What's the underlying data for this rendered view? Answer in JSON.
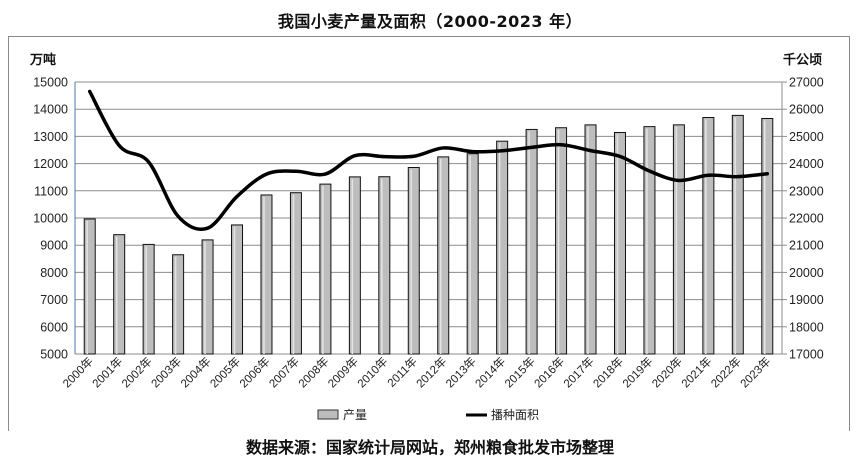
{
  "title": "我国小麦产量及面积（2000-2023 年）",
  "source": "数据来源：国家统计局网站，郑州粮食批发市场整理",
  "axes": {
    "left_unit": "万吨",
    "right_unit": "千公顷",
    "left_ticks": [
      "15000",
      "14000",
      "13000",
      "12000",
      "11000",
      "10000",
      "9000",
      "8000",
      "7000",
      "6000",
      "5000"
    ],
    "right_ticks": [
      "27000",
      "26000",
      "25000",
      "24000",
      "23000",
      "22000",
      "21000",
      "20000",
      "19000",
      "18000",
      "17000"
    ]
  },
  "legend": {
    "bar_label": "产量",
    "line_label": "播种面积"
  },
  "colors": {
    "bar_fill": "#bdbdbd",
    "bar_stroke": "#111111",
    "line": "#000000",
    "grid": "#8c8c8c",
    "axis": "#4a7aa8"
  },
  "chart_data": {
    "type": "bar+line",
    "title": "我国小麦产量及面积（2000-2023 年）",
    "categories": [
      "2000年",
      "2001年",
      "2002年",
      "2003年",
      "2004年",
      "2005年",
      "2006年",
      "2007年",
      "2008年",
      "2009年",
      "2010年",
      "2011年",
      "2012年",
      "2013年",
      "2014年",
      "2015年",
      "2016年",
      "2017年",
      "2018年",
      "2019年",
      "2020年",
      "2021年",
      "2022年",
      "2023年"
    ],
    "series": [
      {
        "name": "产量",
        "type": "bar",
        "axis": "left",
        "unit": "万吨",
        "values": [
          9964,
          9387,
          9029,
          8649,
          9195,
          9745,
          10847,
          10930,
          11246,
          11512,
          11518,
          11857,
          12247,
          12364,
          12824,
          13256,
          13319,
          13424,
          13144,
          13359,
          13425,
          13695,
          13772,
          13659
        ]
      },
      {
        "name": "播种面积",
        "type": "line",
        "axis": "right",
        "unit": "千公顷",
        "values": [
          26653,
          24664,
          24059,
          22064,
          21626,
          22793,
          23613,
          23721,
          23617,
          24290,
          24257,
          24270,
          24576,
          24440,
          24472,
          24597,
          24694,
          24478,
          24266,
          23727,
          23380,
          23571,
          23519,
          23627
        ]
      }
    ],
    "ylabel_left": "万吨",
    "ylabel_right": "千公顷",
    "ylim_left": [
      5000,
      15000
    ],
    "ylim_right": [
      17000,
      27000
    ],
    "grid": true,
    "legend_position": "bottom"
  }
}
